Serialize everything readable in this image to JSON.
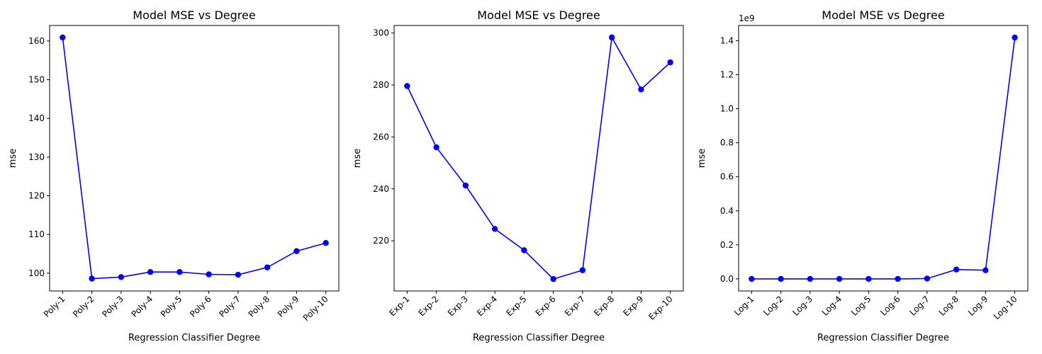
{
  "chart_data": [
    {
      "type": "line",
      "title": "Model MSE vs Degree",
      "xlabel": "Regression Classifier Degree",
      "ylabel": "mse",
      "categories": [
        "Poly-1",
        "Poly-2",
        "Poly-3",
        "Poly-4",
        "Poly-5",
        "Poly-6",
        "Poly-7",
        "Poly-8",
        "Poly-9",
        "Poly-10"
      ],
      "values": [
        160.9,
        98.6,
        99.0,
        100.3,
        100.3,
        99.7,
        99.6,
        101.5,
        105.7,
        107.8
      ],
      "ylim": [
        95.4,
        164.0
      ],
      "yticks": [
        100,
        110,
        120,
        130,
        140,
        150,
        160
      ],
      "yoffset": "",
      "color": "#0000ff",
      "marker": "circle",
      "grid": false
    },
    {
      "type": "line",
      "title": "Model MSE vs Degree",
      "xlabel": "Regression Classifier Degree",
      "ylabel": "mse",
      "categories": [
        "Exp-1",
        "Exp-2",
        "Exp-3",
        "Exp-4",
        "Exp-5",
        "Exp-6",
        "Exp-7",
        "Exp-8",
        "Exp-9",
        "Exp-10"
      ],
      "values": [
        279.6,
        256.0,
        241.3,
        224.6,
        216.4,
        205.3,
        208.7,
        298.3,
        278.3,
        288.7
      ],
      "ylim": [
        200.7,
        302.9
      ],
      "yticks": [
        220,
        240,
        260,
        280,
        300
      ],
      "yoffset": "",
      "color": "#0000ff",
      "marker": "circle",
      "grid": false
    },
    {
      "type": "line",
      "title": "Model MSE vs Degree",
      "xlabel": "Regression Classifier Degree",
      "ylabel": "mse",
      "categories": [
        "Log-1",
        "Log-2",
        "Log-3",
        "Log-4",
        "Log-5",
        "Log-6",
        "Log-7",
        "Log-8",
        "Log-9",
        "Log-10"
      ],
      "values": [
        0.0,
        0.0,
        0.0,
        0.0,
        0.0,
        0.0,
        0.002,
        0.055,
        0.051,
        1.418
      ],
      "ylim": [
        -0.071,
        1.489
      ],
      "yticks": [
        0.0,
        0.2,
        0.4,
        0.6,
        0.8,
        1.0,
        1.2,
        1.4
      ],
      "yoffset": "1e9",
      "color": "#0000ff",
      "marker": "circle",
      "grid": false
    }
  ]
}
